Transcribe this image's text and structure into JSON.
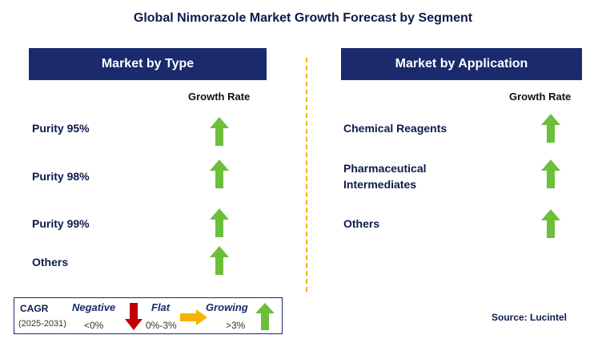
{
  "title": "Global Nimorazole Market Growth Forecast by Segment",
  "left_panel": {
    "header": "Market by Type",
    "column_label": "Growth Rate",
    "rows": [
      {
        "label": "Purity 95%",
        "trend": "growing"
      },
      {
        "label": "Purity 98%",
        "trend": "growing"
      },
      {
        "label": "Purity 99%",
        "trend": "growing"
      },
      {
        "label": "Others",
        "trend": "growing"
      }
    ]
  },
  "right_panel": {
    "header": "Market by Application",
    "column_label": "Growth Rate",
    "rows": [
      {
        "label_line1": "Chemical Reagents",
        "label_line2": "",
        "trend": "growing"
      },
      {
        "label_line1": "Pharmaceutical",
        "label_line2": "Intermediates",
        "trend": "growing"
      },
      {
        "label_line1": "Others",
        "label_line2": "",
        "trend": "growing"
      }
    ]
  },
  "legend": {
    "cagr_label": "CAGR",
    "period": "(2025-2031)",
    "negative_label": "Negative",
    "negative_range": "<0%",
    "flat_label": "Flat",
    "flat_range": "0%-3%",
    "growing_label": "Growing",
    "growing_range": ">3%"
  },
  "source": "Source: Lucintel",
  "colors": {
    "header_bg": "#1a2a6c",
    "growing": "#6cbf3a",
    "negative": "#c00000",
    "flat": "#f5b400",
    "divider": "#f0b400"
  }
}
